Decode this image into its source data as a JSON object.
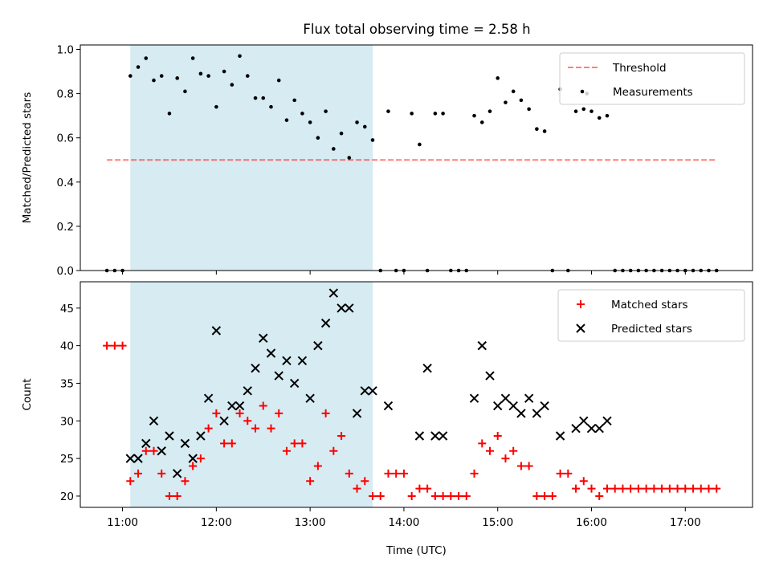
{
  "title": "Flux total observing time = 2.58 h",
  "colors": {
    "shade": "#add8e6",
    "threshold": "#ff0000",
    "measurement": "#000000",
    "matched": "#ff0000",
    "predicted": "#000000"
  },
  "chart_data": [
    {
      "type": "scatter",
      "ylabel": "Matched/Predicted stars",
      "xlim": [
        "10:33",
        "17:43"
      ],
      "ylim": [
        0,
        1.02
      ],
      "yticks": [
        "0.0",
        "0.2",
        "0.4",
        "0.6",
        "0.8",
        "1.0"
      ],
      "xticks": [
        "11:00",
        "12:00",
        "13:00",
        "14:00",
        "15:00",
        "16:00",
        "17:00"
      ],
      "shaded_span": [
        "11:05",
        "13:40"
      ],
      "legend": {
        "position": "upper right",
        "entries": [
          "Threshold",
          "Measurements"
        ]
      },
      "threshold": {
        "name": "Threshold",
        "value": 0.5,
        "x_range": [
          "10:50",
          "17:20"
        ],
        "style": "dashed"
      },
      "series": [
        {
          "name": "Measurements",
          "points": [
            [
              "10:50",
              0.0
            ],
            [
              "10:55",
              0.0
            ],
            [
              "11:00",
              0.0
            ],
            [
              "11:05",
              0.88
            ],
            [
              "11:10",
              0.92
            ],
            [
              "11:15",
              0.96
            ],
            [
              "11:20",
              0.86
            ],
            [
              "11:25",
              0.88
            ],
            [
              "11:30",
              0.71
            ],
            [
              "11:35",
              0.87
            ],
            [
              "11:40",
              0.81
            ],
            [
              "11:45",
              0.96
            ],
            [
              "11:50",
              0.89
            ],
            [
              "11:55",
              0.88
            ],
            [
              "12:00",
              0.74
            ],
            [
              "12:05",
              0.9
            ],
            [
              "12:10",
              0.84
            ],
            [
              "12:15",
              0.97
            ],
            [
              "12:20",
              0.88
            ],
            [
              "12:25",
              0.78
            ],
            [
              "12:30",
              0.78
            ],
            [
              "12:35",
              0.74
            ],
            [
              "12:40",
              0.86
            ],
            [
              "12:45",
              0.68
            ],
            [
              "12:50",
              0.77
            ],
            [
              "12:55",
              0.71
            ],
            [
              "13:00",
              0.67
            ],
            [
              "13:05",
              0.6
            ],
            [
              "13:10",
              0.72
            ],
            [
              "13:15",
              0.55
            ],
            [
              "13:20",
              0.62
            ],
            [
              "13:25",
              0.51
            ],
            [
              "13:30",
              0.67
            ],
            [
              "13:35",
              0.65
            ],
            [
              "13:40",
              0.59
            ],
            [
              "13:45",
              0.0
            ],
            [
              "13:50",
              0.72
            ],
            [
              "13:55",
              0.0
            ],
            [
              "14:00",
              0.0
            ],
            [
              "14:05",
              0.71
            ],
            [
              "14:10",
              0.57
            ],
            [
              "14:15",
              0.0
            ],
            [
              "14:20",
              0.71
            ],
            [
              "14:25",
              0.71
            ],
            [
              "14:30",
              0.0
            ],
            [
              "14:35",
              0.0
            ],
            [
              "14:40",
              0.0
            ],
            [
              "14:45",
              0.7
            ],
            [
              "14:50",
              0.67
            ],
            [
              "14:55",
              0.72
            ],
            [
              "15:00",
              0.87
            ],
            [
              "15:05",
              0.76
            ],
            [
              "15:10",
              0.81
            ],
            [
              "15:15",
              0.77
            ],
            [
              "15:20",
              0.73
            ],
            [
              "15:25",
              0.64
            ],
            [
              "15:30",
              0.63
            ],
            [
              "15:35",
              0.0
            ],
            [
              "15:40",
              0.82
            ],
            [
              "15:45",
              0.0
            ],
            [
              "15:50",
              0.72
            ],
            [
              "15:55",
              0.73
            ],
            [
              "15:57",
              0.8
            ],
            [
              "16:00",
              0.72
            ],
            [
              "16:05",
              0.69
            ],
            [
              "16:10",
              0.7
            ],
            [
              "16:15",
              0.0
            ],
            [
              "16:20",
              0.0
            ],
            [
              "16:25",
              0.0
            ],
            [
              "16:30",
              0.0
            ],
            [
              "16:35",
              0.0
            ],
            [
              "16:40",
              0.0
            ],
            [
              "16:45",
              0.0
            ],
            [
              "16:50",
              0.0
            ],
            [
              "16:55",
              0.0
            ],
            [
              "17:00",
              0.0
            ],
            [
              "17:05",
              0.0
            ],
            [
              "17:10",
              0.0
            ],
            [
              "17:15",
              0.0
            ],
            [
              "17:20",
              0.0
            ]
          ]
        }
      ]
    },
    {
      "type": "scatter",
      "xlabel": "Time (UTC)",
      "ylabel": "Count",
      "xlim": [
        "10:33",
        "17:43"
      ],
      "ylim": [
        18.5,
        48.5
      ],
      "yticks": [
        "20",
        "25",
        "30",
        "35",
        "40",
        "45"
      ],
      "xticks": [
        "11:00",
        "12:00",
        "13:00",
        "14:00",
        "15:00",
        "16:00",
        "17:00"
      ],
      "shaded_span": [
        "11:05",
        "13:40"
      ],
      "legend": {
        "position": "upper right",
        "entries": [
          "Matched stars",
          "Predicted stars"
        ]
      },
      "series": [
        {
          "name": "Matched stars",
          "marker": "+",
          "points": [
            [
              "10:50",
              40
            ],
            [
              "10:55",
              40
            ],
            [
              "11:00",
              40
            ],
            [
              "11:05",
              22
            ],
            [
              "11:10",
              23
            ],
            [
              "11:15",
              26
            ],
            [
              "11:20",
              26
            ],
            [
              "11:25",
              23
            ],
            [
              "11:30",
              20
            ],
            [
              "11:35",
              20
            ],
            [
              "11:40",
              22
            ],
            [
              "11:45",
              24
            ],
            [
              "11:50",
              25
            ],
            [
              "11:55",
              29
            ],
            [
              "12:00",
              31
            ],
            [
              "12:05",
              27
            ],
            [
              "12:10",
              27
            ],
            [
              "12:15",
              31
            ],
            [
              "12:20",
              30
            ],
            [
              "12:25",
              29
            ],
            [
              "12:30",
              32
            ],
            [
              "12:35",
              29
            ],
            [
              "12:40",
              31
            ],
            [
              "12:45",
              26
            ],
            [
              "12:50",
              27
            ],
            [
              "12:55",
              27
            ],
            [
              "13:00",
              22
            ],
            [
              "13:05",
              24
            ],
            [
              "13:10",
              31
            ],
            [
              "13:15",
              26
            ],
            [
              "13:20",
              28
            ],
            [
              "13:25",
              23
            ],
            [
              "13:30",
              21
            ],
            [
              "13:35",
              22
            ],
            [
              "13:40",
              20
            ],
            [
              "13:45",
              20
            ],
            [
              "13:50",
              23
            ],
            [
              "13:55",
              23
            ],
            [
              "14:00",
              23
            ],
            [
              "14:05",
              20
            ],
            [
              "14:10",
              21
            ],
            [
              "14:15",
              21
            ],
            [
              "14:20",
              20
            ],
            [
              "14:25",
              20
            ],
            [
              "14:30",
              20
            ],
            [
              "14:35",
              20
            ],
            [
              "14:40",
              20
            ],
            [
              "14:45",
              23
            ],
            [
              "14:50",
              27
            ],
            [
              "14:55",
              26
            ],
            [
              "15:00",
              28
            ],
            [
              "15:05",
              25
            ],
            [
              "15:10",
              26
            ],
            [
              "15:15",
              24
            ],
            [
              "15:20",
              24
            ],
            [
              "15:25",
              20
            ],
            [
              "15:30",
              20
            ],
            [
              "15:35",
              20
            ],
            [
              "15:40",
              23
            ],
            [
              "15:45",
              23
            ],
            [
              "15:50",
              21
            ],
            [
              "15:55",
              22
            ],
            [
              "16:00",
              21
            ],
            [
              "16:05",
              20
            ],
            [
              "16:10",
              21
            ],
            [
              "16:15",
              21
            ],
            [
              "16:20",
              21
            ],
            [
              "16:25",
              21
            ],
            [
              "16:30",
              21
            ],
            [
              "16:35",
              21
            ],
            [
              "16:40",
              21
            ],
            [
              "16:45",
              21
            ],
            [
              "16:50",
              21
            ],
            [
              "16:55",
              21
            ],
            [
              "17:00",
              21
            ],
            [
              "17:05",
              21
            ],
            [
              "17:10",
              21
            ],
            [
              "17:15",
              21
            ],
            [
              "17:20",
              21
            ]
          ]
        },
        {
          "name": "Predicted stars",
          "marker": "x",
          "points": [
            [
              "11:05",
              25
            ],
            [
              "11:10",
              25
            ],
            [
              "11:15",
              27
            ],
            [
              "11:20",
              30
            ],
            [
              "11:25",
              26
            ],
            [
              "11:30",
              28
            ],
            [
              "11:35",
              23
            ],
            [
              "11:40",
              27
            ],
            [
              "11:45",
              25
            ],
            [
              "11:50",
              28
            ],
            [
              "11:55",
              33
            ],
            [
              "12:00",
              42
            ],
            [
              "12:05",
              30
            ],
            [
              "12:10",
              32
            ],
            [
              "12:15",
              32
            ],
            [
              "12:20",
              34
            ],
            [
              "12:25",
              37
            ],
            [
              "12:30",
              41
            ],
            [
              "12:35",
              39
            ],
            [
              "12:40",
              36
            ],
            [
              "12:45",
              38
            ],
            [
              "12:50",
              35
            ],
            [
              "12:55",
              38
            ],
            [
              "13:00",
              33
            ],
            [
              "13:05",
              40
            ],
            [
              "13:10",
              43
            ],
            [
              "13:15",
              47
            ],
            [
              "13:20",
              45
            ],
            [
              "13:25",
              45
            ],
            [
              "13:30",
              31
            ],
            [
              "13:35",
              34
            ],
            [
              "13:40",
              34
            ],
            [
              "13:50",
              32
            ],
            [
              "14:10",
              28
            ],
            [
              "14:15",
              37
            ],
            [
              "14:20",
              28
            ],
            [
              "14:25",
              28
            ],
            [
              "14:45",
              33
            ],
            [
              "14:50",
              40
            ],
            [
              "14:55",
              36
            ],
            [
              "15:00",
              32
            ],
            [
              "15:05",
              33
            ],
            [
              "15:10",
              32
            ],
            [
              "15:15",
              31
            ],
            [
              "15:20",
              33
            ],
            [
              "15:25",
              31
            ],
            [
              "15:30",
              32
            ],
            [
              "15:40",
              28
            ],
            [
              "15:50",
              29
            ],
            [
              "15:55",
              30
            ],
            [
              "16:00",
              29
            ],
            [
              "16:05",
              29
            ],
            [
              "16:10",
              30
            ]
          ]
        }
      ]
    }
  ]
}
